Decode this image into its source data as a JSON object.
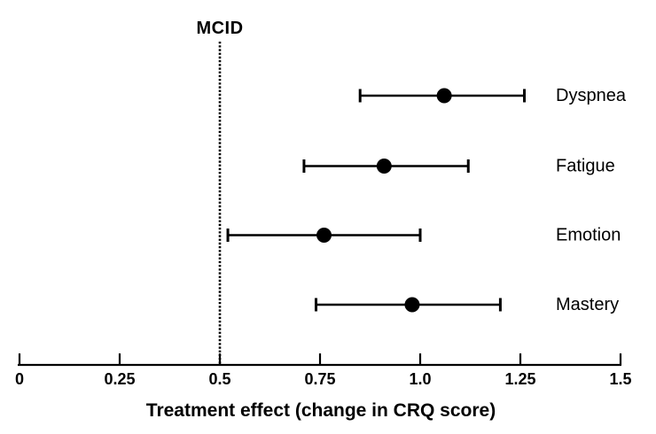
{
  "chart_data": {
    "type": "scatter",
    "subtype": "forest-plot-horizontal-ci",
    "title": "",
    "xlabel": "Treatment effect (change in CRQ score)",
    "ylabel": "",
    "xlim": [
      0,
      1.5
    ],
    "xticks": {
      "values": [
        0,
        0.25,
        0.5,
        0.75,
        1.0,
        1.25,
        1.5
      ],
      "labels": [
        "0",
        "0.25",
        "0.5",
        "0.75",
        "1.0",
        "1.25",
        "1.5"
      ]
    },
    "reference_line": {
      "label": "MCID",
      "value": 0.5,
      "style": "dotted"
    },
    "grid": false,
    "legend": false,
    "marker": "filled-circle",
    "colors": {
      "foreground": "#000000",
      "background": "#ffffff"
    },
    "categories": [
      "Dyspnea",
      "Fatigue",
      "Emotion",
      "Mastery"
    ],
    "points": [
      {
        "label": "Dyspnea",
        "mean": 1.06,
        "ci_low": 0.85,
        "ci_high": 1.26
      },
      {
        "label": "Fatigue",
        "mean": 0.91,
        "ci_low": 0.71,
        "ci_high": 1.12
      },
      {
        "label": "Emotion",
        "mean": 0.76,
        "ci_low": 0.52,
        "ci_high": 1.0
      },
      {
        "label": "Mastery",
        "mean": 0.98,
        "ci_low": 0.74,
        "ci_high": 1.2
      }
    ]
  }
}
